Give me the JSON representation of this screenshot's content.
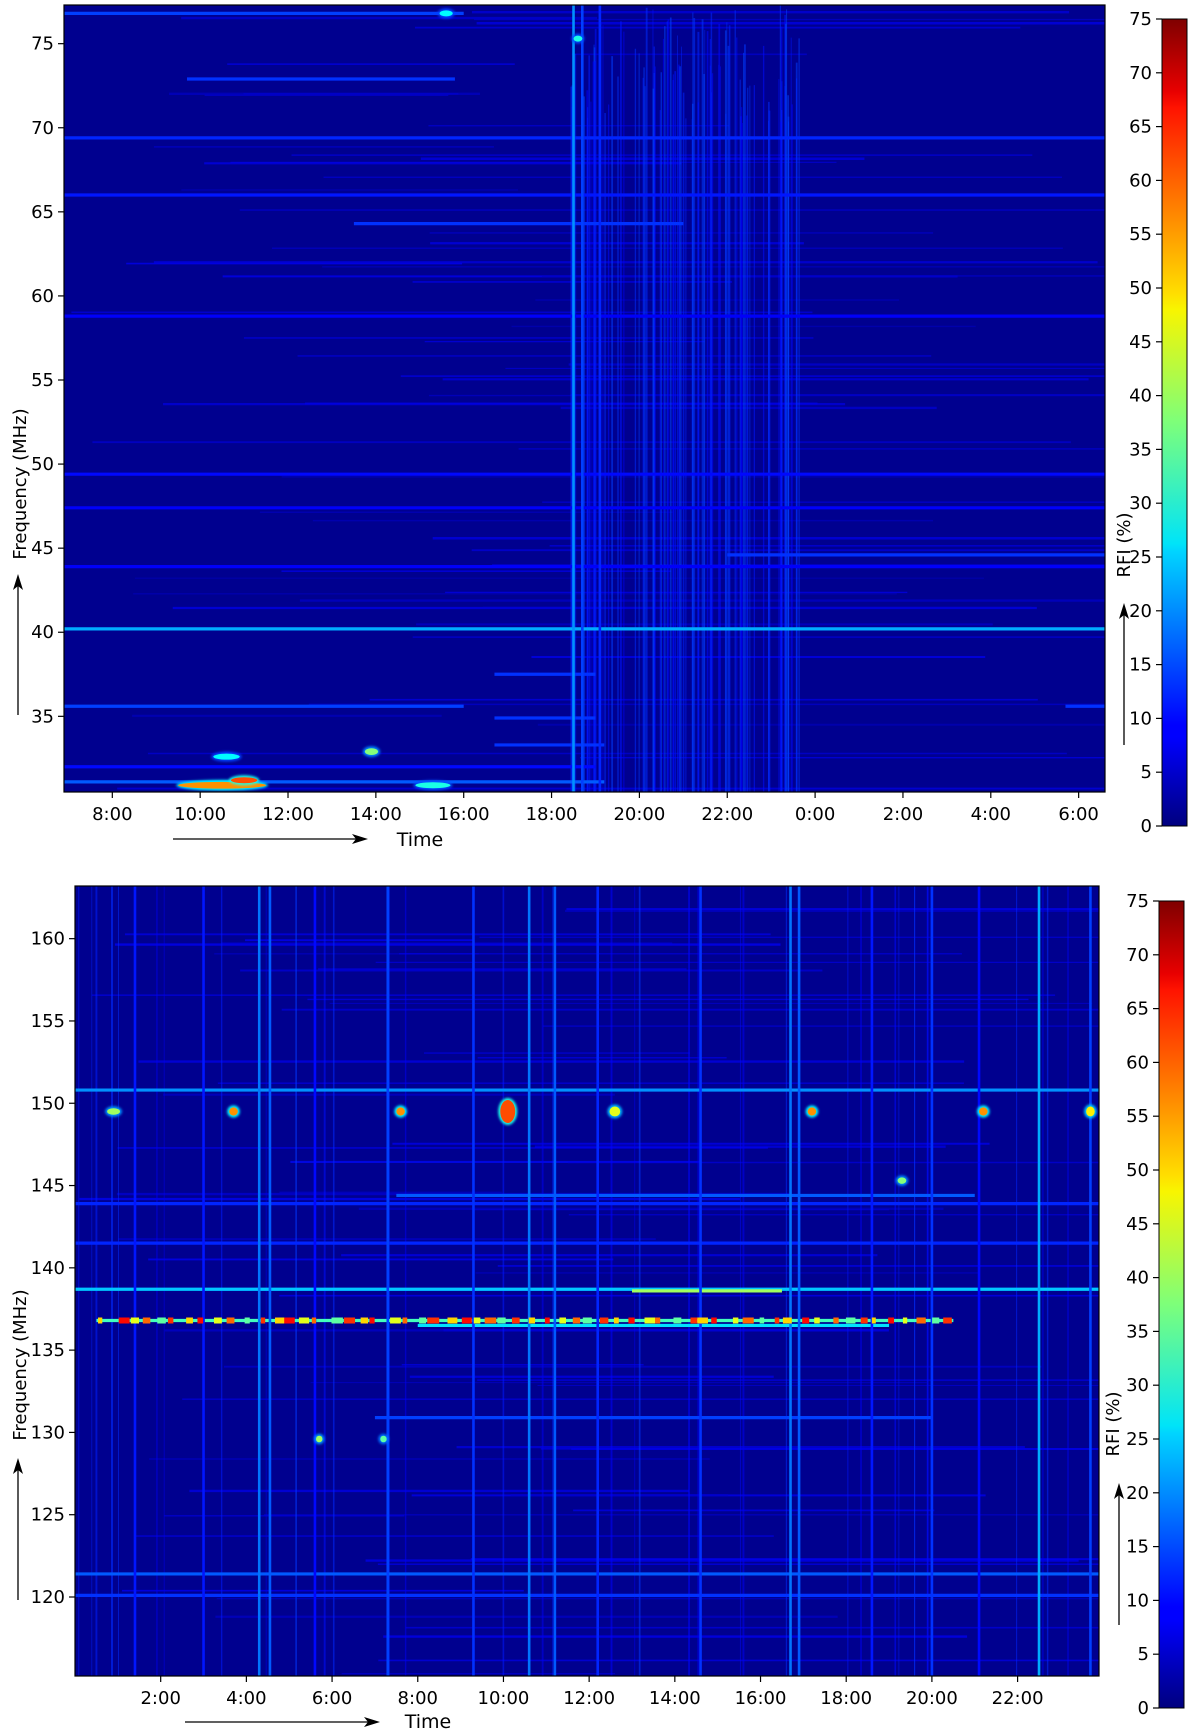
{
  "colormap": "jet",
  "chart_data": [
    {
      "type": "heatmap",
      "xlabel": "Time",
      "ylabel": "Frequency (MHz)",
      "xticks": [
        "8:00",
        "10:00",
        "12:00",
        "14:00",
        "16:00",
        "18:00",
        "20:00",
        "22:00",
        "0:00",
        "2:00",
        "4:00",
        "6:00"
      ],
      "xtick_hours": [
        8,
        10,
        12,
        14,
        16,
        18,
        20,
        22,
        24,
        26,
        28,
        30
      ],
      "xlim_hours": [
        6.9,
        30.6
      ],
      "yticks": [
        35,
        40,
        45,
        50,
        55,
        60,
        65,
        70,
        75
      ],
      "ylim": [
        30.5,
        77.3
      ],
      "colorbar": {
        "label": "RFI (%)",
        "ticks": [
          0,
          5,
          10,
          15,
          20,
          25,
          30,
          35,
          40,
          45,
          50,
          55,
          60,
          65,
          70,
          75
        ],
        "range": [
          0,
          75
        ]
      },
      "background_level": 4,
      "features": {
        "hlines": [
          {
            "f": 40.2,
            "level": 22
          },
          {
            "f": 64.3,
            "level": 13,
            "t": [
              13.5,
              21.0
            ]
          },
          {
            "f": 69.4,
            "level": 12
          },
          {
            "f": 66.0,
            "level": 11
          },
          {
            "f": 58.8,
            "level": 9
          },
          {
            "f": 49.4,
            "level": 10
          },
          {
            "f": 47.4,
            "level": 9
          },
          {
            "f": 44.6,
            "level": 13,
            "t": [
              22.0,
              30.6
            ]
          },
          {
            "f": 43.9,
            "level": 9
          },
          {
            "f": 35.6,
            "level": 14,
            "t": [
              6.9,
              16.0
            ]
          },
          {
            "f": 35.6,
            "level": 13,
            "t": [
              29.7,
              30.6
            ]
          },
          {
            "f": 31.1,
            "level": 16,
            "t": [
              6.9,
              19.2
            ]
          },
          {
            "f": 32.0,
            "level": 10,
            "t": [
              6.9,
              19.0
            ]
          },
          {
            "f": 33.3,
            "level": 13,
            "t": [
              16.7,
              19.2
            ]
          },
          {
            "f": 34.9,
            "level": 13,
            "t": [
              16.7,
              19.0
            ]
          },
          {
            "f": 37.5,
            "level": 13,
            "t": [
              16.7,
              19.0
            ]
          },
          {
            "f": 76.8,
            "level": 14,
            "t": [
              6.9,
              16.0
            ]
          },
          {
            "f": 72.9,
            "level": 13,
            "t": [
              9.7,
              15.8
            ]
          }
        ],
        "vlines": [
          {
            "t": 18.5,
            "level": 20,
            "f": [
              30.5,
              77.3
            ]
          },
          {
            "t": 18.7,
            "level": 14,
            "f": [
              30.5,
              77.3
            ]
          },
          {
            "t": 19.1,
            "level": 12,
            "f": [
              30.5,
              77.3
            ]
          }
        ],
        "vband": {
          "t": [
            18.4,
            23.8
          ],
          "level": 9,
          "count": 110
        },
        "hotspots": [
          {
            "t": 10.5,
            "f": 30.9,
            "level": 55,
            "w": 2,
            "h": 0.4
          },
          {
            "t": 11.0,
            "f": 31.2,
            "level": 60,
            "w": 0.6,
            "h": 0.3
          },
          {
            "t": 13.9,
            "f": 32.9,
            "level": 38,
            "w": 0.3,
            "h": 0.4
          },
          {
            "t": 15.3,
            "f": 30.9,
            "level": 30,
            "w": 0.8,
            "h": 0.3
          },
          {
            "t": 10.6,
            "f": 32.6,
            "level": 28,
            "w": 0.6,
            "h": 0.3
          },
          {
            "t": 15.6,
            "f": 76.8,
            "level": 28,
            "w": 0.3,
            "h": 0.3
          },
          {
            "t": 18.6,
            "f": 75.3,
            "level": 30,
            "w": 0.2,
            "h": 0.3
          }
        ]
      }
    },
    {
      "type": "heatmap",
      "xlabel": "Time",
      "ylabel": "Frequency (MHz)",
      "xticks": [
        "2:00",
        "4:00",
        "6:00",
        "8:00",
        "10:00",
        "12:00",
        "14:00",
        "16:00",
        "18:00",
        "20:00",
        "22:00"
      ],
      "xtick_hours": [
        2,
        4,
        6,
        8,
        10,
        12,
        14,
        16,
        18,
        20,
        22
      ],
      "xlim_hours": [
        0.0,
        23.9
      ],
      "yticks": [
        120,
        125,
        130,
        135,
        140,
        145,
        150,
        155,
        160
      ],
      "ylim": [
        115.2,
        163.2
      ],
      "colorbar": {
        "label": "RFI (%)",
        "ticks": [
          0,
          5,
          10,
          15,
          20,
          25,
          30,
          35,
          40,
          45,
          50,
          55,
          60,
          65,
          70,
          75
        ],
        "range": [
          0,
          75
        ]
      },
      "background_level": 5,
      "features": {
        "hlines": [
          {
            "f": 150.8,
            "level": 20
          },
          {
            "f": 138.7,
            "level": 24
          },
          {
            "f": 121.4,
            "level": 16
          },
          {
            "f": 120.1,
            "level": 13
          },
          {
            "f": 141.5,
            "level": 12
          },
          {
            "f": 143.9,
            "level": 12
          },
          {
            "f": 144.4,
            "level": 16,
            "t": [
              7.5,
              21.0
            ]
          },
          {
            "f": 130.9,
            "level": 14,
            "t": [
              7.0,
              20.0
            ]
          },
          {
            "f": 138.6,
            "level": 40,
            "t": [
              13.0,
              16.5
            ]
          },
          {
            "f": 136.8,
            "level": 33,
            "t": [
              0.5,
              20.5
            ]
          },
          {
            "f": 136.5,
            "level": 26,
            "t": [
              8.0,
              19.0
            ]
          }
        ],
        "vlines": [
          {
            "t": 22.5,
            "level": 22,
            "f": [
              115.2,
              163.2
            ]
          },
          {
            "t": 4.3,
            "level": 18,
            "f": [
              115.2,
              163.2
            ]
          },
          {
            "t": 4.55,
            "level": 16,
            "f": [
              115.2,
              163.2
            ]
          },
          {
            "t": 10.6,
            "level": 18,
            "f": [
              115.2,
              163.2
            ]
          },
          {
            "t": 11.2,
            "level": 16,
            "f": [
              115.2,
              163.2
            ]
          },
          {
            "t": 16.7,
            "level": 18,
            "f": [
              115.2,
              163.2
            ]
          },
          {
            "t": 16.9,
            "level": 16,
            "f": [
              115.2,
              163.2
            ]
          },
          {
            "t": 7.3,
            "level": 14,
            "f": [
              115.2,
              163.2
            ]
          },
          {
            "t": 9.3,
            "level": 13,
            "f": [
              115.2,
              163.2
            ]
          },
          {
            "t": 12.2,
            "level": 12,
            "f": [
              115.2,
              163.2
            ]
          },
          {
            "t": 14.6,
            "level": 13,
            "f": [
              115.2,
              163.2
            ]
          },
          {
            "t": 20.0,
            "level": 13,
            "f": [
              115.2,
              163.2
            ]
          },
          {
            "t": 23.7,
            "level": 14,
            "f": [
              115.2,
              163.2
            ]
          },
          {
            "t": 1.4,
            "level": 11,
            "f": [
              115.2,
              163.2
            ]
          },
          {
            "t": 3.0,
            "level": 11,
            "f": [
              115.2,
              163.2
            ]
          },
          {
            "t": 5.6,
            "level": 10,
            "f": [
              115.2,
              163.2
            ]
          },
          {
            "t": 18.6,
            "level": 11,
            "f": [
              115.2,
              163.2
            ]
          },
          {
            "t": 21.1,
            "level": 10,
            "f": [
              115.2,
              163.2
            ]
          }
        ],
        "vband": {
          "t": [
            0.0,
            23.9
          ],
          "level": 8,
          "count": 40
        },
        "hotspots": [
          {
            "t": 10.1,
            "f": 149.5,
            "level": 60,
            "w": 0.35,
            "h": 1.4
          },
          {
            "t": 3.7,
            "f": 149.5,
            "level": 55,
            "w": 0.2,
            "h": 0.5
          },
          {
            "t": 7.6,
            "f": 149.5,
            "level": 55,
            "w": 0.2,
            "h": 0.5
          },
          {
            "t": 12.6,
            "f": 149.5,
            "level": 45,
            "w": 0.25,
            "h": 0.6
          },
          {
            "t": 17.2,
            "f": 149.5,
            "level": 55,
            "w": 0.2,
            "h": 0.5
          },
          {
            "t": 21.2,
            "f": 149.5,
            "level": 55,
            "w": 0.2,
            "h": 0.5
          },
          {
            "t": 23.7,
            "f": 149.5,
            "level": 48,
            "w": 0.2,
            "h": 0.6
          },
          {
            "t": 0.9,
            "f": 149.5,
            "level": 40,
            "w": 0.3,
            "h": 0.4
          },
          {
            "t": 5.7,
            "f": 129.6,
            "level": 40,
            "w": 0.15,
            "h": 0.4
          },
          {
            "t": 7.2,
            "f": 129.6,
            "level": 35,
            "w": 0.15,
            "h": 0.4
          },
          {
            "t": 19.3,
            "f": 145.3,
            "level": 38,
            "w": 0.2,
            "h": 0.4
          }
        ],
        "dashes": {
          "f": 136.8,
          "t": [
            0.5,
            20.5
          ],
          "count": 60,
          "levels": [
            50,
            65,
            45,
            58,
            35,
            62
          ]
        }
      }
    }
  ]
}
